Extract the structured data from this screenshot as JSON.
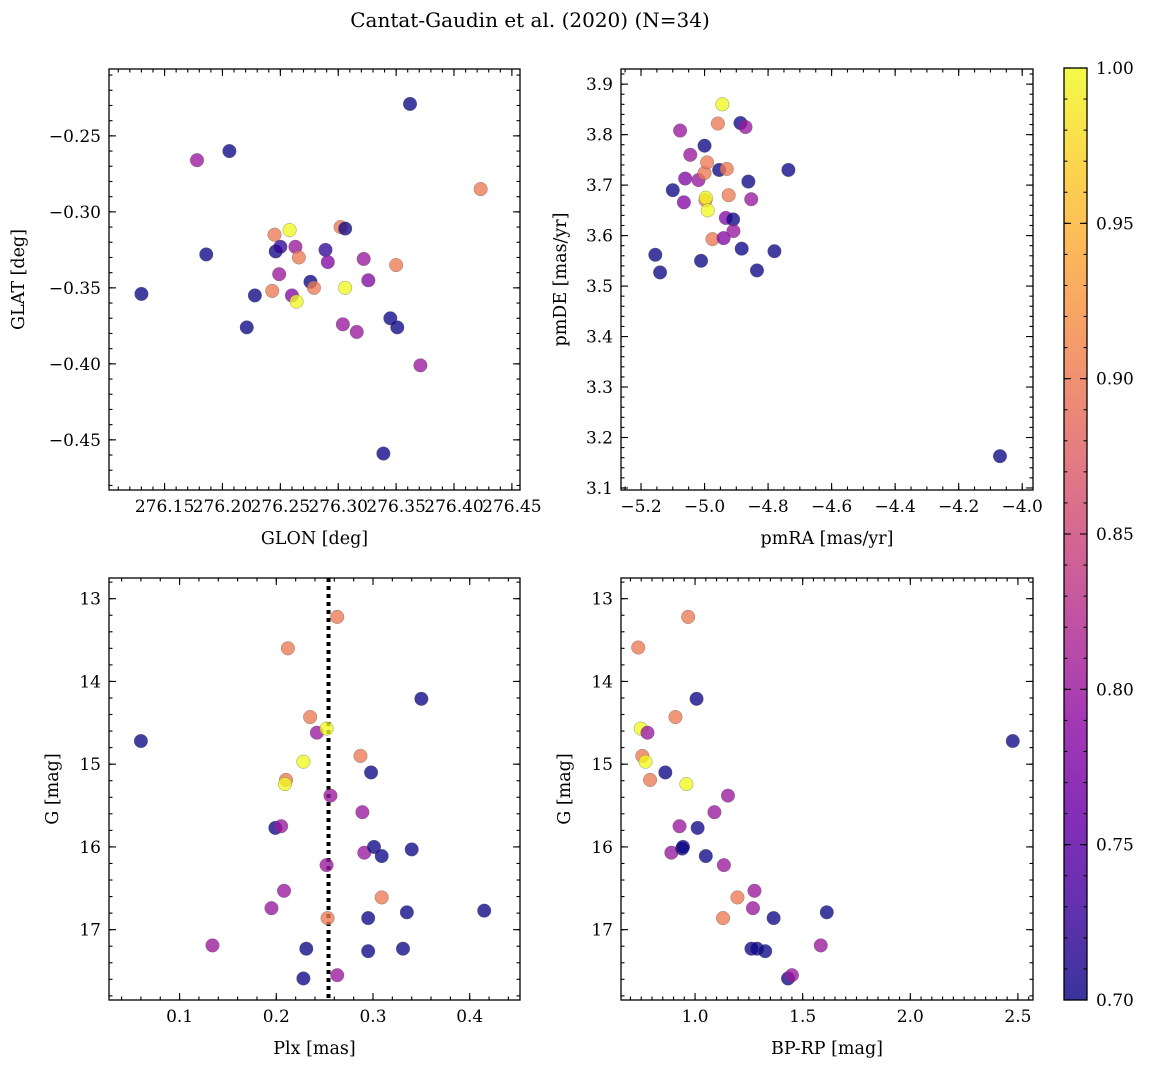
{
  "figure": {
    "title": "Cantat-Gaudin et al. (2020) (N=34)"
  },
  "colorbar": {
    "cmap": "plasma",
    "range": [
      0.7,
      1.0
    ],
    "ticks": [
      0.7,
      0.75,
      0.8,
      0.85,
      0.9,
      0.95,
      1.0
    ],
    "tick_labels": [
      "0.70",
      "0.75",
      "0.80",
      "0.85",
      "0.90",
      "0.95",
      "1.00"
    ]
  },
  "chart_data": [
    {
      "type": "scatter",
      "id": "glon-glat",
      "title": "",
      "xlabel": "GLON [deg]",
      "ylabel": "GLAT [deg]",
      "xlim": [
        276.102,
        276.457
      ],
      "ylim": [
        -0.483,
        -0.206
      ],
      "y_inverted": false,
      "xticks": [
        276.15,
        276.2,
        276.25,
        276.3,
        276.35,
        276.4,
        276.45
      ],
      "xtick_labels": [
        "276.15",
        "276.20",
        "276.25",
        "276.30",
        "276.35",
        "276.40",
        "276.45"
      ],
      "yticks": [
        -0.25,
        -0.3,
        -0.35,
        -0.4,
        -0.45
      ],
      "ytick_labels": [
        "−0.25",
        "−0.30",
        "−0.35",
        "−0.40",
        "−0.45"
      ],
      "points": [
        {
          "x": 276.13,
          "y": -0.354,
          "c": 0.7
        },
        {
          "x": 276.178,
          "y": -0.266,
          "c": 0.8
        },
        {
          "x": 276.186,
          "y": -0.328,
          "c": 0.7
        },
        {
          "x": 276.206,
          "y": -0.26,
          "c": 0.7
        },
        {
          "x": 276.221,
          "y": -0.376,
          "c": 0.7
        },
        {
          "x": 276.228,
          "y": -0.355,
          "c": 0.7
        },
        {
          "x": 276.245,
          "y": -0.315,
          "c": 0.9
        },
        {
          "x": 276.246,
          "y": -0.326,
          "c": 0.7
        },
        {
          "x": 276.25,
          "y": -0.323,
          "c": 0.72
        },
        {
          "x": 276.249,
          "y": -0.341,
          "c": 0.8
        },
        {
          "x": 276.243,
          "y": -0.352,
          "c": 0.9
        },
        {
          "x": 276.258,
          "y": -0.312,
          "c": 1.0
        },
        {
          "x": 276.26,
          "y": -0.355,
          "c": 0.78
        },
        {
          "x": 276.263,
          "y": -0.323,
          "c": 0.8
        },
        {
          "x": 276.264,
          "y": -0.359,
          "c": 1.0
        },
        {
          "x": 276.266,
          "y": -0.33,
          "c": 0.9
        },
        {
          "x": 276.276,
          "y": -0.346,
          "c": 0.7
        },
        {
          "x": 276.279,
          "y": -0.35,
          "c": 0.9
        },
        {
          "x": 276.289,
          "y": -0.325,
          "c": 0.72
        },
        {
          "x": 276.291,
          "y": -0.333,
          "c": 0.78
        },
        {
          "x": 276.302,
          "y": -0.31,
          "c": 0.9
        },
        {
          "x": 276.306,
          "y": -0.311,
          "c": 0.7
        },
        {
          "x": 276.304,
          "y": -0.374,
          "c": 0.8
        },
        {
          "x": 276.306,
          "y": -0.35,
          "c": 1.0
        },
        {
          "x": 276.316,
          "y": -0.379,
          "c": 0.8
        },
        {
          "x": 276.322,
          "y": -0.331,
          "c": 0.8
        },
        {
          "x": 276.326,
          "y": -0.345,
          "c": 0.78
        },
        {
          "x": 276.339,
          "y": -0.459,
          "c": 0.7
        },
        {
          "x": 276.345,
          "y": -0.37,
          "c": 0.7
        },
        {
          "x": 276.35,
          "y": -0.335,
          "c": 0.9
        },
        {
          "x": 276.351,
          "y": -0.376,
          "c": 0.7
        },
        {
          "x": 276.362,
          "y": -0.229,
          "c": 0.7
        },
        {
          "x": 276.371,
          "y": -0.401,
          "c": 0.8
        },
        {
          "x": 276.423,
          "y": -0.285,
          "c": 0.9
        }
      ]
    },
    {
      "type": "scatter",
      "id": "pmra-pmde",
      "title": "",
      "xlabel": "pmRA [mas/yr]",
      "ylabel": "pmDE [mas/yr]",
      "xlim": [
        -5.263,
        -3.966
      ],
      "ylim": [
        3.096,
        3.93
      ],
      "y_inverted": false,
      "xticks": [
        -5.2,
        -5.0,
        -4.8,
        -4.6,
        -4.4,
        -4.2,
        -4.0
      ],
      "xtick_labels": [
        "−5.2",
        "−5.0",
        "−4.8",
        "−4.6",
        "−4.4",
        "−4.2",
        "−4.0"
      ],
      "yticks": [
        3.1,
        3.2,
        3.3,
        3.4,
        3.5,
        3.6,
        3.7,
        3.8,
        3.9
      ],
      "ytick_labels": [
        "3.1",
        "3.2",
        "3.3",
        "3.4",
        "3.5",
        "3.6",
        "3.7",
        "3.8",
        "3.9"
      ],
      "points": [
        {
          "x": -5.155,
          "y": 3.562,
          "c": 0.7
        },
        {
          "x": -5.14,
          "y": 3.527,
          "c": 0.7
        },
        {
          "x": -5.1,
          "y": 3.69,
          "c": 0.7
        },
        {
          "x": -5.077,
          "y": 3.808,
          "c": 0.8
        },
        {
          "x": -5.065,
          "y": 3.666,
          "c": 0.78
        },
        {
          "x": -5.061,
          "y": 3.713,
          "c": 0.78
        },
        {
          "x": -5.045,
          "y": 3.76,
          "c": 0.8
        },
        {
          "x": -5.019,
          "y": 3.71,
          "c": 0.8
        },
        {
          "x": -5.011,
          "y": 3.55,
          "c": 0.7
        },
        {
          "x": -5.0,
          "y": 3.778,
          "c": 0.7
        },
        {
          "x": -5.0,
          "y": 3.724,
          "c": 0.9
        },
        {
          "x": -4.997,
          "y": 3.67,
          "c": 0.9
        },
        {
          "x": -4.992,
          "y": 3.745,
          "c": 0.9
        },
        {
          "x": -4.996,
          "y": 3.675,
          "c": 1.0
        },
        {
          "x": -4.99,
          "y": 3.65,
          "c": 1.0
        },
        {
          "x": -4.975,
          "y": 3.593,
          "c": 0.9
        },
        {
          "x": -4.958,
          "y": 3.822,
          "c": 0.9
        },
        {
          "x": -4.954,
          "y": 3.73,
          "c": 0.7
        },
        {
          "x": -4.944,
          "y": 3.86,
          "c": 1.0
        },
        {
          "x": -4.94,
          "y": 3.595,
          "c": 0.78
        },
        {
          "x": -4.93,
          "y": 3.732,
          "c": 0.9
        },
        {
          "x": -4.933,
          "y": 3.635,
          "c": 0.78
        },
        {
          "x": -4.924,
          "y": 3.68,
          "c": 0.9
        },
        {
          "x": -4.91,
          "y": 3.632,
          "c": 0.7
        },
        {
          "x": -4.909,
          "y": 3.609,
          "c": 0.8
        },
        {
          "x": -4.887,
          "y": 3.823,
          "c": 0.7
        },
        {
          "x": -4.883,
          "y": 3.574,
          "c": 0.7
        },
        {
          "x": -4.871,
          "y": 3.815,
          "c": 0.8
        },
        {
          "x": -4.862,
          "y": 3.707,
          "c": 0.7
        },
        {
          "x": -4.853,
          "y": 3.672,
          "c": 0.8
        },
        {
          "x": -4.835,
          "y": 3.531,
          "c": 0.7
        },
        {
          "x": -4.78,
          "y": 3.569,
          "c": 0.7
        },
        {
          "x": -4.736,
          "y": 3.73,
          "c": 0.7
        },
        {
          "x": -4.07,
          "y": 3.163,
          "c": 0.7
        }
      ]
    },
    {
      "type": "scatter",
      "id": "plx-g",
      "title": "",
      "xlabel": "Plx [mas]",
      "ylabel": "G [mag]",
      "xlim": [
        0.027,
        0.452
      ],
      "ylim": [
        17.85,
        12.75
      ],
      "y_inverted": true,
      "xticks": [
        0.1,
        0.2,
        0.3,
        0.4
      ],
      "xtick_labels": [
        "0.1",
        "0.2",
        "0.3",
        "0.4"
      ],
      "yticks": [
        13,
        14,
        15,
        16,
        17
      ],
      "ytick_labels": [
        "13",
        "14",
        "15",
        "16",
        "17"
      ],
      "reference_line": {
        "orientation": "vertical",
        "x": 0.254,
        "style": "dotted",
        "color": "#000000"
      },
      "points": [
        {
          "x": 0.06,
          "y": 14.72,
          "c": 0.7
        },
        {
          "x": 0.134,
          "y": 17.19,
          "c": 0.8
        },
        {
          "x": 0.195,
          "y": 16.74,
          "c": 0.8
        },
        {
          "x": 0.199,
          "y": 15.77,
          "c": 0.7
        },
        {
          "x": 0.205,
          "y": 15.75,
          "c": 0.8
        },
        {
          "x": 0.208,
          "y": 16.53,
          "c": 0.8
        },
        {
          "x": 0.21,
          "y": 15.19,
          "c": 0.9
        },
        {
          "x": 0.209,
          "y": 15.24,
          "c": 1.0
        },
        {
          "x": 0.212,
          "y": 13.6,
          "c": 0.9
        },
        {
          "x": 0.228,
          "y": 14.97,
          "c": 1.0
        },
        {
          "x": 0.228,
          "y": 17.59,
          "c": 0.7
        },
        {
          "x": 0.231,
          "y": 17.23,
          "c": 0.7
        },
        {
          "x": 0.235,
          "y": 14.43,
          "c": 0.9
        },
        {
          "x": 0.242,
          "y": 14.62,
          "c": 0.8
        },
        {
          "x": 0.252,
          "y": 14.57,
          "c": 1.0
        },
        {
          "x": 0.252,
          "y": 16.22,
          "c": 0.8
        },
        {
          "x": 0.253,
          "y": 16.86,
          "c": 0.9
        },
        {
          "x": 0.256,
          "y": 15.38,
          "c": 0.8
        },
        {
          "x": 0.263,
          "y": 13.22,
          "c": 0.9
        },
        {
          "x": 0.263,
          "y": 17.55,
          "c": 0.8
        },
        {
          "x": 0.287,
          "y": 14.9,
          "c": 0.9
        },
        {
          "x": 0.289,
          "y": 15.58,
          "c": 0.8
        },
        {
          "x": 0.291,
          "y": 16.07,
          "c": 0.8
        },
        {
          "x": 0.295,
          "y": 16.86,
          "c": 0.7
        },
        {
          "x": 0.295,
          "y": 17.26,
          "c": 0.7
        },
        {
          "x": 0.298,
          "y": 15.1,
          "c": 0.7
        },
        {
          "x": 0.301,
          "y": 16.0,
          "c": 0.7
        },
        {
          "x": 0.309,
          "y": 16.11,
          "c": 0.7
        },
        {
          "x": 0.309,
          "y": 16.61,
          "c": 0.9
        },
        {
          "x": 0.331,
          "y": 17.23,
          "c": 0.7
        },
        {
          "x": 0.335,
          "y": 16.79,
          "c": 0.7
        },
        {
          "x": 0.34,
          "y": 16.03,
          "c": 0.7
        },
        {
          "x": 0.35,
          "y": 14.21,
          "c": 0.7
        },
        {
          "x": 0.415,
          "y": 16.77,
          "c": 0.7
        }
      ]
    },
    {
      "type": "scatter",
      "id": "bprp-g",
      "title": "",
      "xlabel": "BP-RP [mag]",
      "ylabel": "G [mag]",
      "xlim": [
        0.656,
        2.57
      ],
      "ylim": [
        17.85,
        12.75
      ],
      "y_inverted": true,
      "xticks": [
        1.0,
        1.5,
        2.0,
        2.5
      ],
      "xtick_labels": [
        "1.0",
        "1.5",
        "2.0",
        "2.5"
      ],
      "yticks": [
        13,
        14,
        15,
        16,
        17
      ],
      "ytick_labels": [
        "13",
        "14",
        "15",
        "16",
        "17"
      ],
      "points": [
        {
          "x": 0.736,
          "y": 13.59,
          "c": 0.9
        },
        {
          "x": 0.748,
          "y": 14.57,
          "c": 1.0
        },
        {
          "x": 0.755,
          "y": 14.9,
          "c": 0.9
        },
        {
          "x": 0.77,
          "y": 14.97,
          "c": 1.0
        },
        {
          "x": 0.779,
          "y": 14.62,
          "c": 0.8
        },
        {
          "x": 0.791,
          "y": 15.19,
          "c": 0.9
        },
        {
          "x": 0.862,
          "y": 15.1,
          "c": 0.7
        },
        {
          "x": 0.89,
          "y": 16.07,
          "c": 0.8
        },
        {
          "x": 0.909,
          "y": 14.43,
          "c": 0.9
        },
        {
          "x": 0.928,
          "y": 15.75,
          "c": 0.8
        },
        {
          "x": 0.94,
          "y": 16.02,
          "c": 0.7
        },
        {
          "x": 0.944,
          "y": 16.0,
          "c": 0.7
        },
        {
          "x": 0.96,
          "y": 15.24,
          "c": 1.0
        },
        {
          "x": 0.968,
          "y": 13.22,
          "c": 0.9
        },
        {
          "x": 1.007,
          "y": 14.21,
          "c": 0.7
        },
        {
          "x": 1.012,
          "y": 15.77,
          "c": 0.7
        },
        {
          "x": 1.05,
          "y": 16.11,
          "c": 0.7
        },
        {
          "x": 1.09,
          "y": 15.58,
          "c": 0.8
        },
        {
          "x": 1.13,
          "y": 16.86,
          "c": 0.9
        },
        {
          "x": 1.134,
          "y": 16.22,
          "c": 0.8
        },
        {
          "x": 1.153,
          "y": 15.38,
          "c": 0.8
        },
        {
          "x": 1.197,
          "y": 16.61,
          "c": 0.9
        },
        {
          "x": 1.262,
          "y": 17.23,
          "c": 0.7
        },
        {
          "x": 1.269,
          "y": 16.74,
          "c": 0.8
        },
        {
          "x": 1.276,
          "y": 16.53,
          "c": 0.8
        },
        {
          "x": 1.288,
          "y": 17.23,
          "c": 0.7
        },
        {
          "x": 1.326,
          "y": 17.26,
          "c": 0.7
        },
        {
          "x": 1.365,
          "y": 16.86,
          "c": 0.7
        },
        {
          "x": 1.432,
          "y": 17.59,
          "c": 0.7
        },
        {
          "x": 1.45,
          "y": 17.55,
          "c": 0.8
        },
        {
          "x": 1.584,
          "y": 17.19,
          "c": 0.8
        },
        {
          "x": 1.612,
          "y": 16.79,
          "c": 0.7
        },
        {
          "x": 2.476,
          "y": 14.72,
          "c": 0.7
        }
      ]
    }
  ]
}
